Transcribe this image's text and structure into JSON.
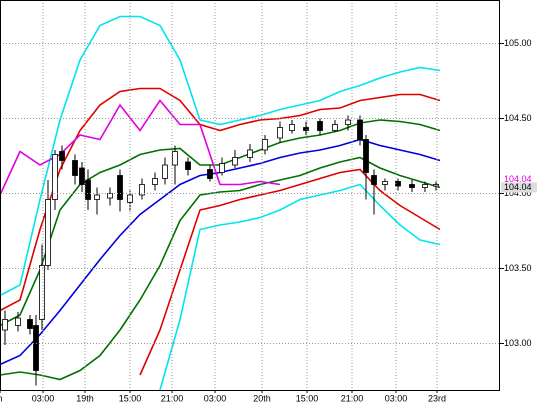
{
  "chart_data": {
    "type": "candlestick",
    "xlim": [
      0,
      100
    ],
    "ylim": [
      102.69,
      105.29
    ],
    "yticks": [
      {
        "value": 103.0,
        "label": "103.00"
      },
      {
        "value": 103.5,
        "label": "103.50"
      },
      {
        "value": 104.0,
        "label": "104.00"
      },
      {
        "value": 104.5,
        "label": "104.50"
      },
      {
        "value": 105.0,
        "label": "105.00"
      }
    ],
    "xticks": [
      {
        "value": 0,
        "label": "h"
      },
      {
        "value": 8.6,
        "label": "03:00"
      },
      {
        "value": 17,
        "label": "19th"
      },
      {
        "value": 26,
        "label": "15:00"
      },
      {
        "value": 34.4,
        "label": "21:00"
      },
      {
        "value": 43,
        "label": "03:00"
      },
      {
        "value": 52.4,
        "label": "20th"
      },
      {
        "value": 61.4,
        "label": "15:00"
      },
      {
        "value": 70.4,
        "label": "21:00"
      },
      {
        "value": 79.2,
        "label": "03:00"
      },
      {
        "value": 87.4,
        "label": "23rd"
      }
    ],
    "grid": true,
    "up_color": "#ffffff",
    "down_color": "#000000",
    "candles": {
      "x": [
        1,
        3.6,
        6,
        7.2,
        8.4,
        9.6,
        11,
        12.4,
        15,
        16.4,
        17.6,
        19.4,
        22,
        24,
        26,
        28.4,
        31,
        33,
        35,
        37.6,
        42,
        44.4,
        47,
        50,
        53,
        56,
        58.4,
        61.2,
        64,
        67,
        69.6,
        72,
        73.2,
        74.8,
        77,
        79.6,
        82.4,
        85,
        87.2
      ],
      "open": [
        103.09,
        103.12,
        103.16,
        103.12,
        103.16,
        103.52,
        103.96,
        104.28,
        104.22,
        104.17,
        104.09,
        103.96,
        103.97,
        104.12,
        103.94,
        103.99,
        104.06,
        104.1,
        104.19,
        104.21,
        104.16,
        104.14,
        104.19,
        104.24,
        104.29,
        104.37,
        104.42,
        104.44,
        104.48,
        104.42,
        104.46,
        104.49,
        104.36,
        104.12,
        104.06,
        104.08,
        104.06,
        104.04,
        104.05
      ],
      "high": [
        103.22,
        103.21,
        103.19,
        103.19,
        103.66,
        104.09,
        104.29,
        104.32,
        104.26,
        104.21,
        104.16,
        104.04,
        104.04,
        104.16,
        104.02,
        104.1,
        104.14,
        104.24,
        104.32,
        104.24,
        104.19,
        104.24,
        104.29,
        104.33,
        104.39,
        104.48,
        104.49,
        104.48,
        104.5,
        104.49,
        104.52,
        104.52,
        104.39,
        104.16,
        104.1,
        104.1,
        104.09,
        104.08,
        104.08
      ],
      "low": [
        102.99,
        103.08,
        103.06,
        102.72,
        103.09,
        103.49,
        103.89,
        104.16,
        104.06,
        104.01,
        103.89,
        103.86,
        103.92,
        103.88,
        103.88,
        103.96,
        104.02,
        104.06,
        104.06,
        104.12,
        104.08,
        104.12,
        104.17,
        104.21,
        104.26,
        104.34,
        104.4,
        104.39,
        104.39,
        104.41,
        104.42,
        104.32,
        103.96,
        103.86,
        104.02,
        104.02,
        104.01,
        104.01,
        104.02
      ],
      "close": [
        103.16,
        103.17,
        103.1,
        102.82,
        103.52,
        103.96,
        104.26,
        104.22,
        104.12,
        104.06,
        103.96,
        103.99,
        104.0,
        103.96,
        103.99,
        104.06,
        104.1,
        104.19,
        104.28,
        104.16,
        104.1,
        104.2,
        104.24,
        104.29,
        104.36,
        104.44,
        104.46,
        104.42,
        104.42,
        104.46,
        104.49,
        104.36,
        104.14,
        104.06,
        104.08,
        104.05,
        104.04,
        104.06,
        104.06
      ]
    },
    "x": [
      0,
      4,
      8,
      12,
      16,
      20,
      24,
      28,
      32,
      36,
      40,
      44,
      48,
      52,
      56,
      60,
      64,
      68,
      72,
      76,
      80,
      84,
      88
    ],
    "series": [
      {
        "color": "#00e5ee",
        "values": [
          103.32,
          103.39,
          103.96,
          104.49,
          104.89,
          105.12,
          105.18,
          105.18,
          105.12,
          104.89,
          104.49,
          104.46,
          104.49,
          104.52,
          104.56,
          104.59,
          104.62,
          104.68,
          104.72,
          104.77,
          104.81,
          104.84,
          104.82
        ]
      },
      {
        "color": "#e00000",
        "values": [
          103.22,
          103.29,
          103.76,
          104.16,
          104.42,
          104.59,
          104.68,
          104.7,
          104.7,
          104.62,
          104.46,
          104.42,
          104.46,
          104.49,
          104.5,
          104.52,
          104.56,
          104.57,
          104.62,
          104.64,
          104.66,
          104.66,
          104.62
        ]
      },
      {
        "color": "#007000",
        "values": [
          103.12,
          103.19,
          103.49,
          103.89,
          104.06,
          104.14,
          104.19,
          104.26,
          104.29,
          104.3,
          104.19,
          104.19,
          104.24,
          104.29,
          104.34,
          104.37,
          104.39,
          104.42,
          104.47,
          104.49,
          104.48,
          104.46,
          104.42
        ]
      },
      {
        "color": "#0000e0",
        "values": [
          102.86,
          102.92,
          103.06,
          103.22,
          103.39,
          103.56,
          103.72,
          103.86,
          103.96,
          104.06,
          104.12,
          104.14,
          104.17,
          104.2,
          104.24,
          104.27,
          104.29,
          104.32,
          104.36,
          104.32,
          104.29,
          104.26,
          104.22
        ]
      },
      {
        "color": "#007000",
        "values": [
          102.79,
          102.81,
          102.79,
          102.76,
          102.82,
          102.92,
          103.09,
          103.29,
          103.52,
          103.82,
          103.99,
          104.01,
          104.02,
          104.06,
          104.09,
          104.12,
          104.17,
          104.21,
          104.24,
          104.17,
          104.12,
          104.08,
          104.04
        ]
      },
      {
        "color": "#e00000",
        "values": [
          null,
          null,
          null,
          null,
          null,
          null,
          null,
          102.79,
          103.09,
          103.49,
          103.89,
          103.92,
          103.96,
          103.99,
          104.02,
          104.06,
          104.1,
          104.14,
          104.16,
          104.02,
          103.92,
          103.84,
          103.76
        ]
      },
      {
        "color": "#00e5ee",
        "values": [
          null,
          null,
          null,
          null,
          null,
          null,
          null,
          null,
          102.69,
          103.16,
          103.76,
          103.79,
          103.81,
          103.84,
          103.89,
          103.96,
          103.99,
          104.02,
          104.06,
          103.92,
          103.79,
          103.69,
          103.66
        ]
      },
      {
        "color": "#e000e0",
        "values": [
          103.99,
          104.28,
          104.19,
          104.26,
          104.39,
          104.36,
          104.59,
          104.42,
          104.62,
          104.46,
          104.46,
          104.06,
          104.06,
          104.08,
          104.06,
          null,
          null,
          null,
          null,
          null,
          null,
          null,
          null
        ]
      }
    ],
    "price_labels": [
      {
        "value": 104.04,
        "label": "104.04",
        "color": "#e000e0"
      },
      {
        "value": 104.04,
        "label": "104.04",
        "color": "#000000"
      }
    ]
  }
}
